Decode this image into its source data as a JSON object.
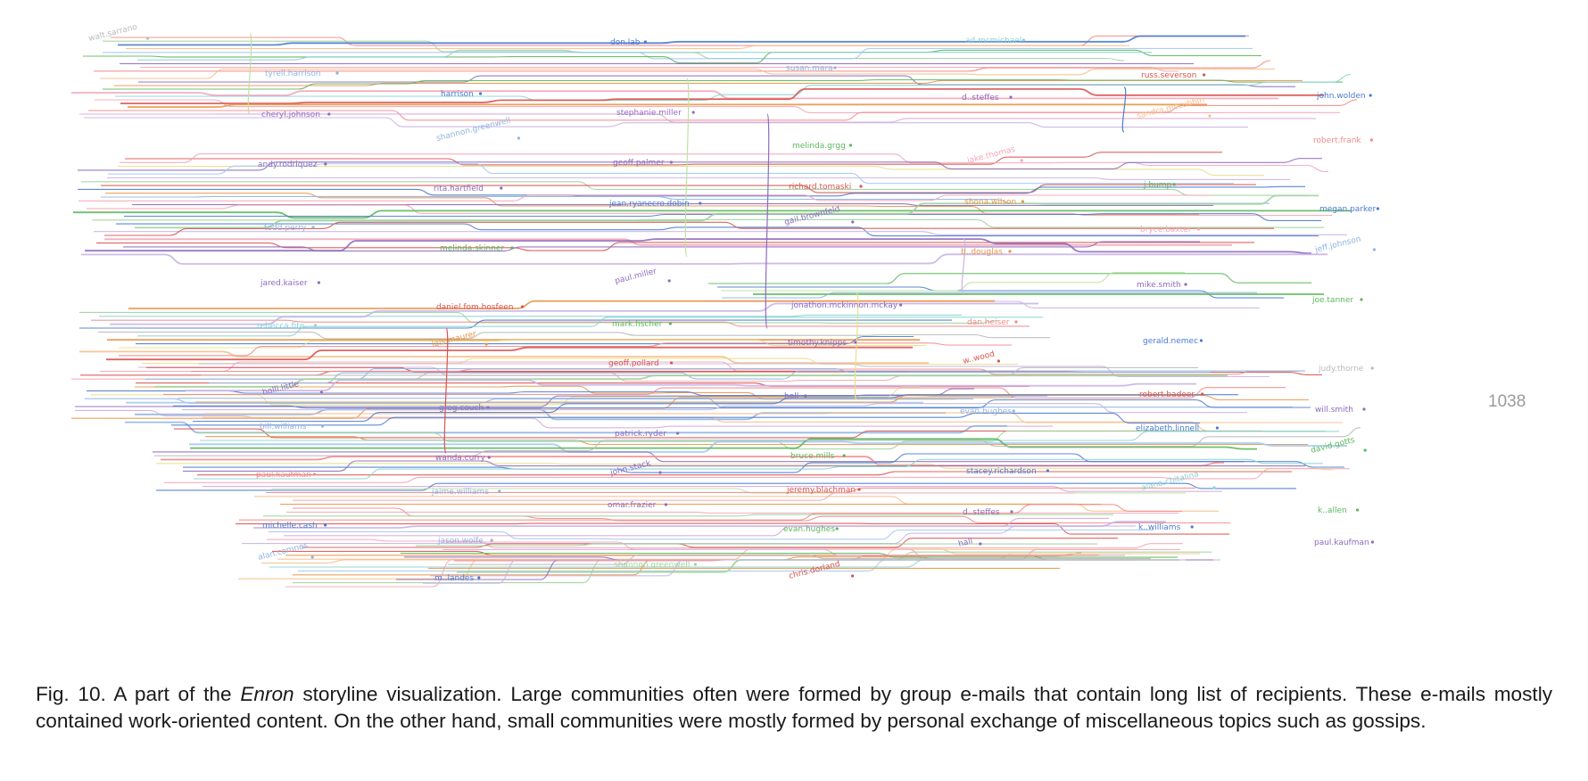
{
  "figure": {
    "frame_number": "1038",
    "line_colors": [
      "#8fb4e3",
      "#f4a6b8",
      "#9ed49a",
      "#c9b3e6",
      "#f6c08a",
      "#8ad3d3",
      "#e7e08a",
      "#b9b9b9",
      "#f28b8b",
      "#a3c9f1",
      "#d8a8d8",
      "#bde3a0",
      "#4a7bd0",
      "#d9534f",
      "#5cb85c",
      "#8e6bbf",
      "#e8964a"
    ],
    "labels": [
      {
        "text": "walt.sarrano",
        "color": "#b9b9b9"
      },
      {
        "text": "tyrell.harrison",
        "color": "#8fb4e3"
      },
      {
        "text": "harrison",
        "color": "#4a7bd0"
      },
      {
        "text": "stephanie.miller",
        "color": "#8e6bbf"
      },
      {
        "text": "melinda.grgg",
        "color": "#5cb85c"
      },
      {
        "text": "jake.thomas",
        "color": "#f4a6b8"
      },
      {
        "text": "j.bump",
        "color": "#5cb85c"
      },
      {
        "text": "megan.parker",
        "color": "#4a7bd0"
      },
      {
        "text": "todd.perry",
        "color": "#8fb4e3"
      },
      {
        "text": "melinda.skinner",
        "color": "#5cb85c"
      },
      {
        "text": "paul.miller",
        "color": "#8e6bbf"
      },
      {
        "text": "jonathon.mckinnon.mckay",
        "color": "#8e6bbf"
      },
      {
        "text": "dan.heiser",
        "color": "#f28b8b"
      },
      {
        "text": "gerald.nemec",
        "color": "#4a7bd0"
      },
      {
        "text": "judy.thorne",
        "color": "#b9b9b9"
      },
      {
        "text": "holli.little",
        "color": "#8e6bbf"
      },
      {
        "text": "greg.couch",
        "color": "#8e6bbf"
      },
      {
        "text": "patrick.ryder",
        "color": "#8e6bbf"
      },
      {
        "text": "bruce.mills",
        "color": "#5cb85c"
      },
      {
        "text": "stacey.richardson",
        "color": "#4a7bd0"
      },
      {
        "text": "alana.chitalina",
        "color": "#8ad3d3"
      },
      {
        "text": "k..allen",
        "color": "#5cb85c"
      },
      {
        "text": "michelle.cash",
        "color": "#4a7bd0"
      },
      {
        "text": "jason.wolfe",
        "color": "#8fb4e3"
      },
      {
        "text": "shannon.greenwell",
        "color": "#9ed49a"
      },
      {
        "text": "chris.dorland",
        "color": "#d9534f"
      },
      {
        "text": "ad.mcmichael",
        "color": "#8ad3d3"
      },
      {
        "text": "russ.severson",
        "color": "#d9534f"
      },
      {
        "text": "john.wolden",
        "color": "#4a7bd0"
      },
      {
        "text": "cheryl.johnson",
        "color": "#8e6bbf"
      },
      {
        "text": "shannon.greenwell",
        "color": "#8fb4e3"
      },
      {
        "text": "geoff.palmer",
        "color": "#8e6bbf"
      },
      {
        "text": "richard.tomaski",
        "color": "#d9534f"
      },
      {
        "text": "shona.wilson",
        "color": "#e8964a"
      },
      {
        "text": "bryce.baxter",
        "color": "#f4a6b8"
      },
      {
        "text": "jeff.johnson",
        "color": "#8fb4e3"
      },
      {
        "text": "jared.kaiser",
        "color": "#8e6bbf"
      },
      {
        "text": "daniel.fom.hosfeen",
        "color": "#d9534f"
      },
      {
        "text": "mark.fischer",
        "color": "#5cb85c"
      },
      {
        "text": "timothy.knipps",
        "color": "#8e6bbf"
      },
      {
        "text": "w..wood",
        "color": "#d9534f"
      },
      {
        "text": "robert.badeer",
        "color": "#d9534f"
      },
      {
        "text": "will.smith",
        "color": "#8e6bbf"
      },
      {
        "text": "bill.williams",
        "color": "#8fb4e3"
      },
      {
        "text": "wanda.curry",
        "color": "#8e6bbf"
      },
      {
        "text": "john.stack",
        "color": "#8e6bbf"
      },
      {
        "text": "jeremy.blachman",
        "color": "#d9534f"
      },
      {
        "text": "d..steffes",
        "color": "#8e6bbf"
      },
      {
        "text": "k..williams",
        "color": "#4a7bd0"
      },
      {
        "text": "paul.kaufman",
        "color": "#8e6bbf"
      },
      {
        "text": "alan.comnes",
        "color": "#8fb4e3"
      },
      {
        "text": "m..landes",
        "color": "#4a7bd0"
      },
      {
        "text": "don.lab",
        "color": "#4a7bd0"
      },
      {
        "text": "susan.mara",
        "color": "#8fb4e3"
      },
      {
        "text": "d..steffes",
        "color": "#8e6bbf"
      },
      {
        "text": "sandra.mccubbin",
        "color": "#f6c08a"
      },
      {
        "text": "robert.frank",
        "color": "#f28b8b"
      },
      {
        "text": "andy.rodriquez",
        "color": "#8e6bbf"
      },
      {
        "text": "rita.hartfield",
        "color": "#8e6bbf"
      },
      {
        "text": "jean.ryanecro.dobin",
        "color": "#4a7bd0"
      },
      {
        "text": "gail.brownfeld",
        "color": "#8e6bbf"
      },
      {
        "text": "b..douglas",
        "color": "#e8964a"
      },
      {
        "text": "mike.smith",
        "color": "#8e6bbf"
      },
      {
        "text": "joe.tanner",
        "color": "#5cb85c"
      },
      {
        "text": "rebecca.fite",
        "color": "#8ad3d3"
      },
      {
        "text": "lois.maurer",
        "color": "#e8964a"
      },
      {
        "text": "geoff.pollard",
        "color": "#d9534f"
      },
      {
        "text": "hall",
        "color": "#8e6bbf"
      },
      {
        "text": "evan.hughes",
        "color": "#8fb4e3"
      },
      {
        "text": "elizabeth.linnell",
        "color": "#4a7bd0"
      },
      {
        "text": "david.gotts",
        "color": "#5cb85c"
      },
      {
        "text": "paul.kaufman",
        "color": "#f28b8b"
      },
      {
        "text": "jaime.williams",
        "color": "#8fb4e3"
      },
      {
        "text": "omar.frazier",
        "color": "#8e6bbf"
      },
      {
        "text": "evan.hughes",
        "color": "#5cb85c"
      },
      {
        "text": "hall",
        "color": "#8e6bbf"
      }
    ]
  },
  "caption": {
    "fig_prefix": "Fig. 10. A part of the ",
    "dataset": "Enron",
    "text": " storyline visualization. Large communities often were formed by group e-mails that contain long list of recipients. These e-mails mostly contained work-oriented content. On the other hand, small communities were mostly formed by personal exchange of miscellaneous topics such as gossips."
  }
}
